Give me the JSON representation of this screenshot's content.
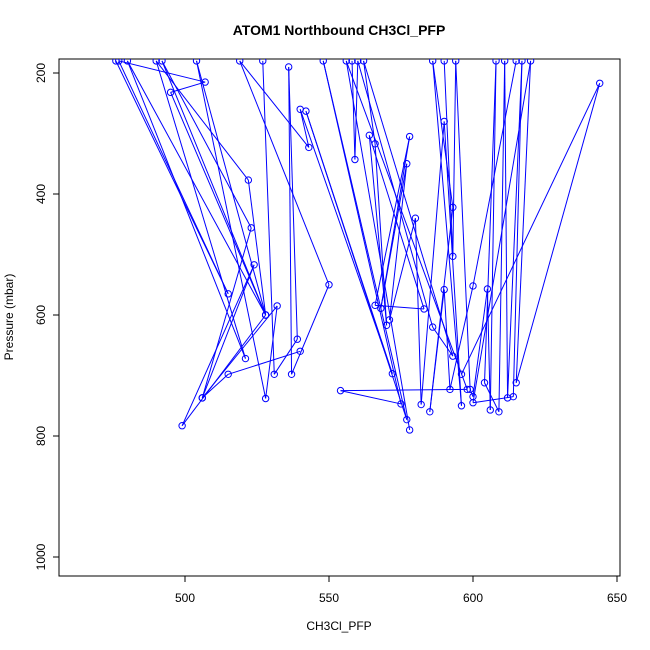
{
  "chart_data": {
    "type": "scatter",
    "title": "ATOM1 Northbound CH3Cl_PFP",
    "xlabel": "CH3Cl_PFP",
    "ylabel": "Pressure (mbar)",
    "xlim": [
      460,
      650
    ],
    "ylim": [
      1030,
      180
    ],
    "y_reversed": true,
    "xticks": [
      500,
      550,
      600,
      650
    ],
    "yticks": [
      200,
      400,
      600,
      800,
      1000
    ],
    "grid": false,
    "color": "#0000ff",
    "marker": "open-circle",
    "connected": true,
    "series": [
      {
        "points": [
          {
            "x": 476,
            "y": 180
          },
          {
            "x": 515,
            "y": 565
          },
          {
            "x": 477,
            "y": 180
          },
          {
            "x": 507,
            "y": 215
          },
          {
            "x": 495,
            "y": 232
          },
          {
            "x": 528,
            "y": 600
          },
          {
            "x": 480,
            "y": 180
          },
          {
            "x": 521,
            "y": 672
          },
          {
            "x": 490,
            "y": 180
          },
          {
            "x": 522,
            "y": 377
          },
          {
            "x": 528,
            "y": 600
          },
          {
            "x": 492,
            "y": 180
          },
          {
            "x": 523,
            "y": 456
          },
          {
            "x": 506,
            "y": 737
          },
          {
            "x": 524,
            "y": 517
          },
          {
            "x": 499,
            "y": 783
          },
          {
            "x": 528,
            "y": 600
          },
          {
            "x": 504,
            "y": 180
          },
          {
            "x": 528,
            "y": 738
          },
          {
            "x": 532,
            "y": 585
          },
          {
            "x": 506,
            "y": 737
          },
          {
            "x": 515,
            "y": 698
          },
          {
            "x": 540,
            "y": 660
          }
        ]
      },
      {
        "points": [
          {
            "x": 527,
            "y": 180
          },
          {
            "x": 531,
            "y": 698
          },
          {
            "x": 539,
            "y": 640
          },
          {
            "x": 536,
            "y": 190
          },
          {
            "x": 537,
            "y": 698
          },
          {
            "x": 550,
            "y": 550
          },
          {
            "x": 519,
            "y": 180
          },
          {
            "x": 543,
            "y": 323
          },
          {
            "x": 540,
            "y": 260
          },
          {
            "x": 572,
            "y": 697
          },
          {
            "x": 542,
            "y": 263
          },
          {
            "x": 577,
            "y": 773
          },
          {
            "x": 548,
            "y": 180
          },
          {
            "x": 575,
            "y": 747
          },
          {
            "x": 554,
            "y": 725
          },
          {
            "x": 598,
            "y": 723
          },
          {
            "x": 556,
            "y": 180
          },
          {
            "x": 578,
            "y": 790
          }
        ]
      },
      {
        "points": [
          {
            "x": 558,
            "y": 180
          },
          {
            "x": 559,
            "y": 343
          },
          {
            "x": 560,
            "y": 180
          },
          {
            "x": 586,
            "y": 620
          },
          {
            "x": 593,
            "y": 668
          },
          {
            "x": 562,
            "y": 180
          },
          {
            "x": 566,
            "y": 317
          },
          {
            "x": 570,
            "y": 617
          },
          {
            "x": 564,
            "y": 303
          },
          {
            "x": 583,
            "y": 590
          },
          {
            "x": 566,
            "y": 584
          },
          {
            "x": 578,
            "y": 305
          },
          {
            "x": 568,
            "y": 589
          },
          {
            "x": 577,
            "y": 350
          },
          {
            "x": 571,
            "y": 608
          },
          {
            "x": 580,
            "y": 440
          },
          {
            "x": 582,
            "y": 748
          },
          {
            "x": 590,
            "y": 280
          },
          {
            "x": 596,
            "y": 750
          },
          {
            "x": 586,
            "y": 180
          },
          {
            "x": 593,
            "y": 422
          },
          {
            "x": 585,
            "y": 760
          },
          {
            "x": 590,
            "y": 558
          },
          {
            "x": 592,
            "y": 723
          },
          {
            "x": 600,
            "y": 552
          },
          {
            "x": 615,
            "y": 180
          }
        ]
      },
      {
        "points": [
          {
            "x": 590,
            "y": 180
          },
          {
            "x": 593,
            "y": 503
          },
          {
            "x": 594,
            "y": 180
          },
          {
            "x": 599,
            "y": 723
          },
          {
            "x": 600,
            "y": 735
          },
          {
            "x": 605,
            "y": 557
          },
          {
            "x": 606,
            "y": 757
          },
          {
            "x": 608,
            "y": 180
          },
          {
            "x": 604,
            "y": 712
          },
          {
            "x": 609,
            "y": 760
          },
          {
            "x": 611,
            "y": 180
          },
          {
            "x": 612,
            "y": 737
          },
          {
            "x": 617,
            "y": 180
          },
          {
            "x": 614,
            "y": 735
          },
          {
            "x": 600,
            "y": 745
          },
          {
            "x": 620,
            "y": 180
          },
          {
            "x": 615,
            "y": 712
          },
          {
            "x": 644,
            "y": 217
          },
          {
            "x": 596,
            "y": 698
          }
        ]
      }
    ]
  }
}
